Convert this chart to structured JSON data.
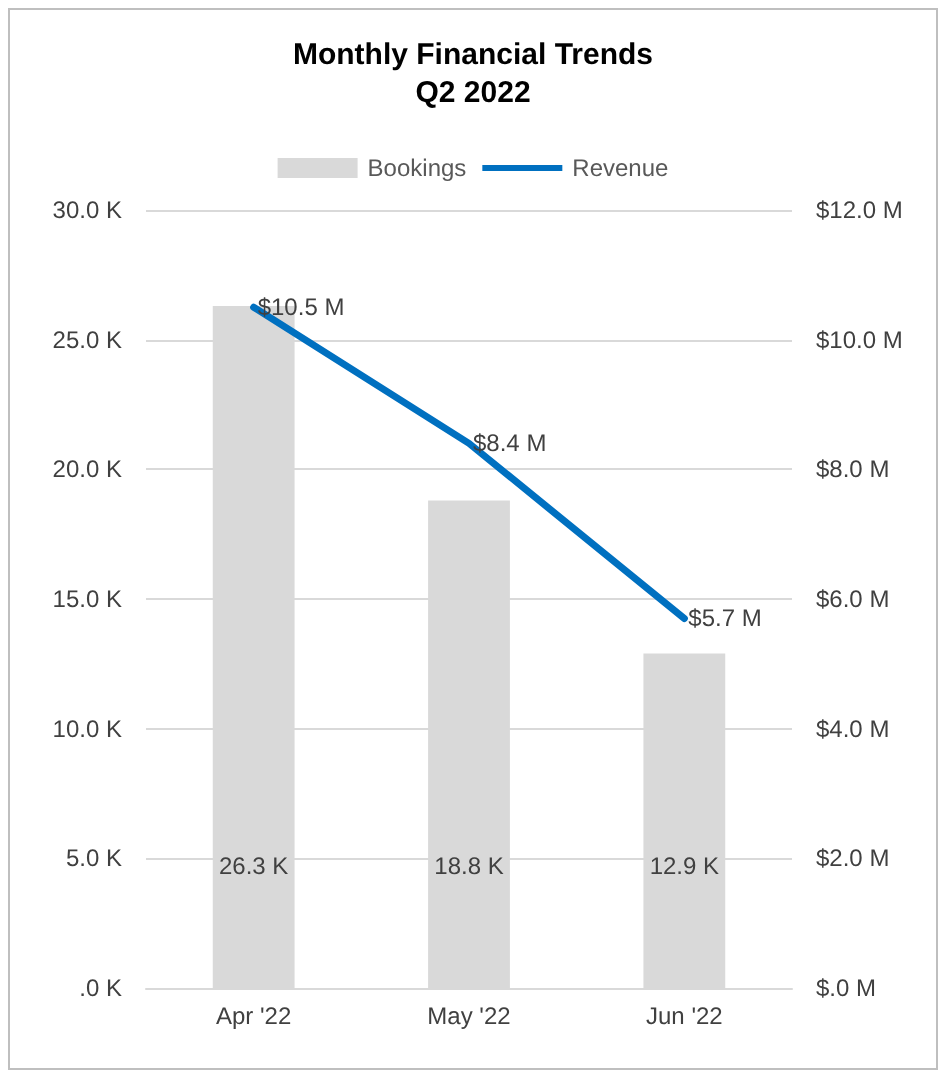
{
  "chart_data": {
    "type": "bar",
    "title": "Monthly Financial Trends",
    "subtitle": "Q2 2022",
    "categories": [
      "Apr '22",
      "May '22",
      "Jun '22"
    ],
    "series": [
      {
        "name": "Bookings",
        "color": "#d9d9d9",
        "values": [
          26.3,
          18.8,
          12.9
        ],
        "value_labels": [
          "26.3 K",
          "18.8 K",
          "12.9 K"
        ]
      },
      {
        "name": "Revenue",
        "type": "line",
        "axis": "y2",
        "color": "#0070c0",
        "values": [
          10.5,
          8.4,
          5.7
        ],
        "value_labels": [
          "$10.5 M",
          "$8.4 M",
          "$5.7 M"
        ]
      }
    ],
    "ylim": [
      0,
      30
    ],
    "yticks": [
      {
        "value": 0,
        "label": ".0 K"
      },
      {
        "value": 5,
        "label": "5.0 K"
      },
      {
        "value": 10,
        "label": "10.0 K"
      },
      {
        "value": 15,
        "label": "15.0 K"
      },
      {
        "value": 20,
        "label": "20.0 K"
      },
      {
        "value": 25,
        "label": "25.0 K"
      },
      {
        "value": 30,
        "label": "30.0 K"
      }
    ],
    "y2lim": [
      0,
      12
    ],
    "y2ticks": [
      {
        "value": 0,
        "label": "$.0 M"
      },
      {
        "value": 2,
        "label": "$2.0 M"
      },
      {
        "value": 4,
        "label": "$4.0 M"
      },
      {
        "value": 6,
        "label": "$6.0 M"
      },
      {
        "value": 8,
        "label": "$8.0 M"
      },
      {
        "value": 10,
        "label": "$10.0 M"
      },
      {
        "value": 12,
        "label": "$12.0 M"
      }
    ],
    "grid": "y",
    "legend": "top"
  }
}
